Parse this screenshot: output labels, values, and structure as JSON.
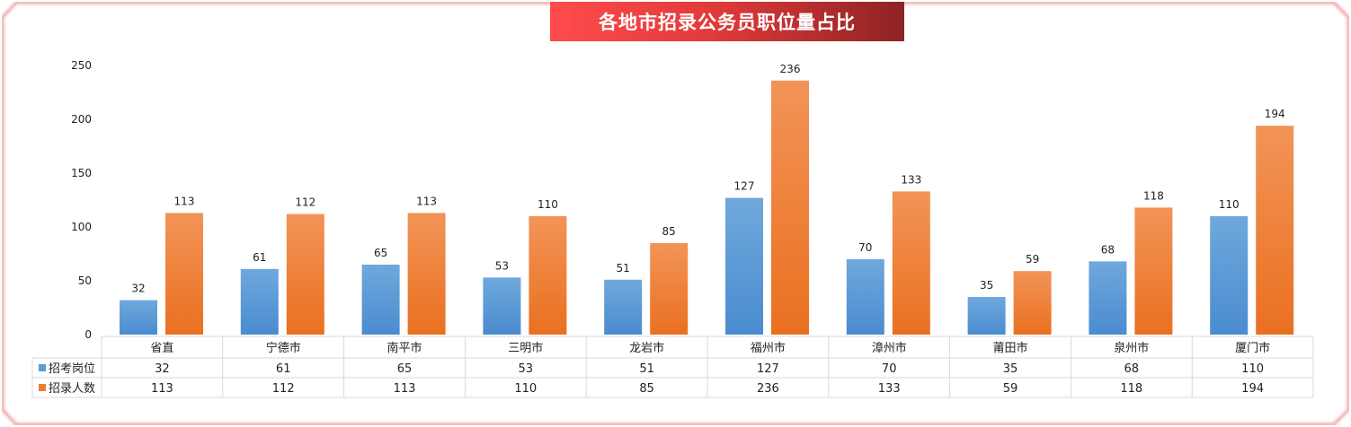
{
  "title": "各地市招录公务员职位量占比",
  "colors": {
    "border": "#f2a0a0",
    "series1": "#5b9bd5",
    "series2": "#ed7d31",
    "grid": "#d9d9d9"
  },
  "chart_data": {
    "type": "bar",
    "title": "各地市招录公务员职位量占比",
    "categories": [
      "省直",
      "宁德市",
      "南平市",
      "三明市",
      "龙岩市",
      "福州市",
      "漳州市",
      "莆田市",
      "泉州市",
      "厦门市"
    ],
    "series": [
      {
        "name": "招考岗位",
        "values": [
          32,
          61,
          65,
          53,
          51,
          127,
          70,
          35,
          68,
          110
        ]
      },
      {
        "name": "招录人数",
        "values": [
          113,
          112,
          113,
          110,
          85,
          236,
          133,
          59,
          118,
          194
        ]
      }
    ],
    "y_ticks": [
      "0",
      "50",
      "100",
      "150",
      "200",
      "250"
    ],
    "ylim": [
      0,
      250
    ],
    "grid": false,
    "legend": "data-table",
    "data_table": true
  }
}
